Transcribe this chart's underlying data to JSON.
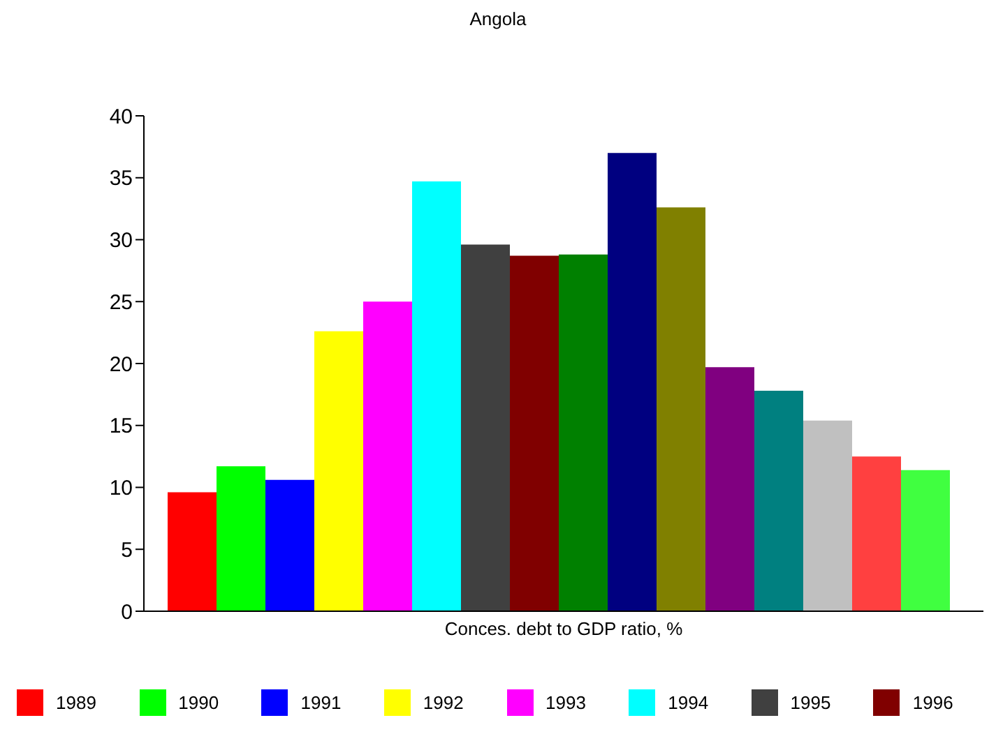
{
  "chart_data": {
    "type": "bar",
    "title": "Angola",
    "categories": [
      "Conces. debt to GDP ratio, %"
    ],
    "series": [
      {
        "name": "1989",
        "color": "#ff0000",
        "values": [
          9.6
        ]
      },
      {
        "name": "1990",
        "color": "#00ff00",
        "values": [
          11.7
        ]
      },
      {
        "name": "1991",
        "color": "#0000ff",
        "values": [
          10.6
        ]
      },
      {
        "name": "1992",
        "color": "#ffff00",
        "values": [
          22.6
        ]
      },
      {
        "name": "1993",
        "color": "#ff00ff",
        "values": [
          25.0
        ]
      },
      {
        "name": "1994",
        "color": "#00ffff",
        "values": [
          34.7
        ]
      },
      {
        "name": "1995",
        "color": "#404040",
        "values": [
          29.6
        ]
      },
      {
        "name": "1996",
        "color": "#800000",
        "values": [
          28.7
        ]
      },
      {
        "color": "#008000",
        "values": [
          28.8
        ]
      },
      {
        "color": "#000080",
        "values": [
          37.0
        ]
      },
      {
        "color": "#808000",
        "values": [
          32.6
        ]
      },
      {
        "color": "#800080",
        "values": [
          19.7
        ]
      },
      {
        "color": "#008080",
        "values": [
          17.8
        ]
      },
      {
        "color": "#c0c0c0",
        "values": [
          15.4
        ]
      },
      {
        "color": "#ff4040",
        "values": [
          12.5
        ]
      },
      {
        "color": "#40ff40",
        "values": [
          11.4
        ]
      }
    ],
    "ylim": [
      0,
      40
    ],
    "yticks": [
      0,
      5,
      10,
      15,
      20,
      25,
      30,
      35,
      40
    ],
    "grid": false,
    "legend": "bottom"
  }
}
